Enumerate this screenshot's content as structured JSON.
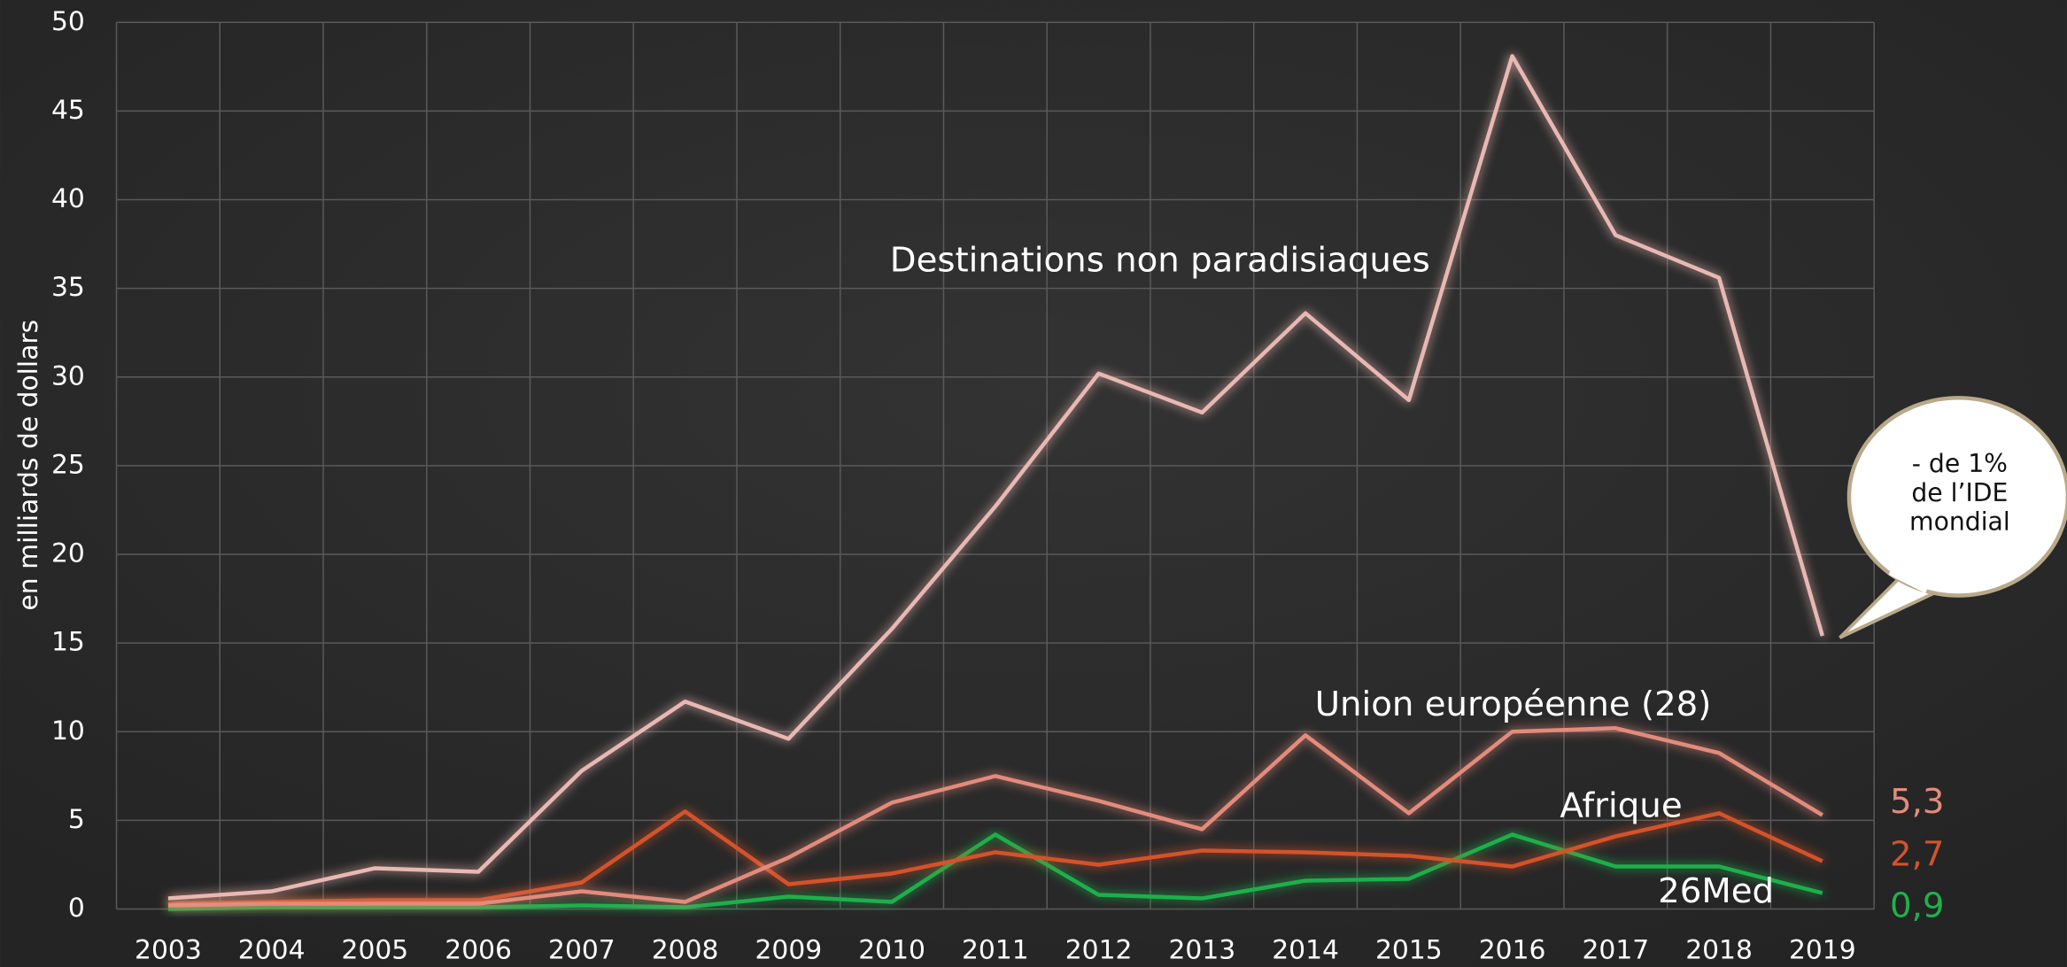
{
  "chart_data": {
    "type": "line",
    "y_label": "en milliards de dollars",
    "categories": [
      "2003",
      "2004",
      "2005",
      "2006",
      "2007",
      "2008",
      "2009",
      "2010",
      "2011",
      "2012",
      "2013",
      "2014",
      "2015",
      "2016",
      "2017",
      "2018",
      "2019"
    ],
    "ylim": [
      0,
      50
    ],
    "yticks": [
      0,
      5,
      10,
      15,
      20,
      25,
      30,
      35,
      40,
      45,
      50
    ],
    "grid": true,
    "series": [
      {
        "name": "Destinations non paradisiaques",
        "color": "#e9b8b3",
        "values": [
          0.6,
          1.0,
          2.3,
          2.1,
          7.8,
          11.7,
          9.6,
          15.8,
          22.7,
          30.2,
          28.0,
          33.6,
          28.7,
          48.1,
          38.0,
          35.6,
          15.4
        ]
      },
      {
        "name": "Union européenne (28)",
        "color": "#e38b7c",
        "values": [
          0.2,
          0.3,
          0.3,
          0.3,
          1.0,
          0.4,
          2.9,
          6.0,
          7.5,
          6.1,
          4.5,
          9.8,
          5.4,
          10.0,
          10.2,
          8.8,
          5.3
        ],
        "value_labels": [
          null,
          null,
          null,
          null,
          null,
          null,
          null,
          null,
          null,
          null,
          null,
          null,
          null,
          null,
          null,
          null,
          "5,3"
        ]
      },
      {
        "name": "Afrique",
        "color": "#d4532c",
        "values": [
          0.3,
          0.4,
          0.5,
          0.5,
          1.5,
          5.5,
          1.4,
          2.0,
          3.2,
          2.5,
          3.3,
          3.2,
          3.0,
          2.4,
          4.1,
          5.4,
          2.7
        ],
        "value_labels": [
          null,
          null,
          null,
          null,
          null,
          null,
          null,
          null,
          null,
          null,
          null,
          null,
          null,
          null,
          null,
          null,
          "2,7"
        ]
      },
      {
        "name": "26Med",
        "color": "#1fb04c",
        "values": [
          0.0,
          0.1,
          0.1,
          0.1,
          0.2,
          0.1,
          0.7,
          0.4,
          4.2,
          0.8,
          0.6,
          1.6,
          1.7,
          4.2,
          2.4,
          2.4,
          0.9
        ],
        "value_labels": [
          null,
          null,
          null,
          null,
          null,
          null,
          null,
          null,
          null,
          null,
          null,
          null,
          null,
          null,
          null,
          null,
          "0,9"
        ]
      }
    ],
    "annotation": [
      "- de 1%",
      "de l’IDE",
      "mondial"
    ]
  }
}
